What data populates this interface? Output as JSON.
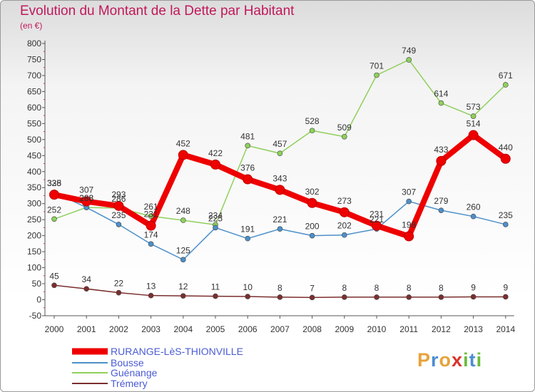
{
  "title": "Evolution du Montant de la Dette par Habitant",
  "unit": "(en €)",
  "brand": "Proxiti",
  "chart_data": {
    "type": "line",
    "title": "Evolution du Montant de la Dette par Habitant",
    "ylabel": "(en €)",
    "x": [
      2000,
      2001,
      2002,
      2003,
      2004,
      2005,
      2006,
      2007,
      2008,
      2009,
      2010,
      2011,
      2012,
      2013,
      2014
    ],
    "ylim": [
      -50,
      800
    ],
    "yticks": [
      -50,
      0,
      50,
      100,
      150,
      200,
      250,
      300,
      350,
      400,
      450,
      500,
      550,
      600,
      650,
      700,
      750,
      800
    ],
    "grid": false,
    "legend_position": "bottom-left",
    "series": [
      {
        "name": "RURANGE-LèS-THIONVILLE",
        "color": "#ee0000",
        "values": [
          328,
          307,
          293,
          231,
          452,
          422,
          376,
          343,
          302,
          273,
          231,
          198,
          433,
          514,
          440
        ]
      },
      {
        "name": "Bousse",
        "color": "#4d8fc9",
        "values": [
          335,
          288,
          235,
          174,
          125,
          225,
          191,
          221,
          200,
          202,
          221,
          307,
          279,
          260,
          235
        ]
      },
      {
        "name": "Guénange",
        "color": "#8ed05c",
        "values": [
          252,
          288,
          286,
          261,
          248,
          234,
          481,
          457,
          528,
          509,
          701,
          749,
          614,
          573,
          671
        ]
      },
      {
        "name": "Trémery",
        "color": "#7b2e2e",
        "values": [
          45,
          34,
          22,
          13,
          12,
          11,
          10,
          8,
          7,
          8,
          8,
          8,
          8,
          9,
          9
        ]
      }
    ]
  }
}
